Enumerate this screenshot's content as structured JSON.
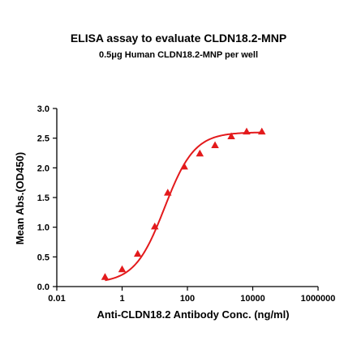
{
  "chart_data": {
    "type": "scatter",
    "title": "ELISA assay to evaluate CLDN18.2-MNP",
    "subtitle": "0.5μg Human CLDN18.2-MNP per well",
    "xlabel": "Anti-CLDN18.2 Antibody Conc. (ng/ml)",
    "ylabel": "Mean Abs.(OD450)",
    "x_scale": "log",
    "xlim": [
      0.01,
      1000000
    ],
    "ylim": [
      0,
      3.0
    ],
    "x_ticks": [
      0.01,
      1,
      100,
      10000,
      1000000
    ],
    "x_tick_labels": [
      "0.01",
      "1",
      "100",
      "10000",
      "1000000"
    ],
    "y_ticks": [
      0.0,
      0.5,
      1.0,
      1.5,
      2.0,
      2.5,
      3.0
    ],
    "y_tick_labels": [
      "0.0",
      "0.5",
      "1.0",
      "1.5",
      "2.0",
      "2.5",
      "3.0"
    ],
    "grid": false,
    "series": [
      {
        "marker": "triangle",
        "color": "#e31a1c",
        "x": [
          0.3,
          1.0,
          3.0,
          10,
          25,
          80,
          240,
          700,
          2200,
          6500,
          19000
        ],
        "y": [
          0.16,
          0.29,
          0.55,
          1.01,
          1.58,
          2.02,
          2.24,
          2.38,
          2.53,
          2.61,
          2.61
        ]
      }
    ],
    "fit_curve": {
      "color": "#e31a1c",
      "model": "4PL",
      "bottom": 0.06,
      "top": 2.6,
      "ec50": 20,
      "hill": 0.95,
      "x_range": [
        0.3,
        19000
      ]
    }
  }
}
